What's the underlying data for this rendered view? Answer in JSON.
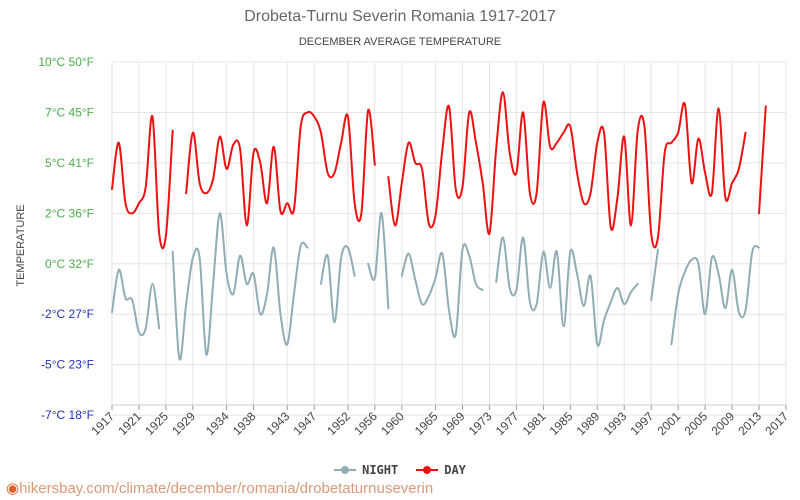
{
  "title": "Drobeta-Turnu Severin Romania 1917-2017",
  "subtitle": "DECEMBER AVERAGE TEMPERATURE",
  "source_url": "hikersbay.com/climate/december/romania/drobetaturnuseverin",
  "colors": {
    "day": "#ee1111",
    "night": "#90adb5",
    "grid": "#e5e5e5",
    "y_green": "#4cae4c",
    "y_blue": "#2233bb"
  },
  "chart_data": {
    "type": "line",
    "title": "Drobeta-Turnu Severin Romania 1917-2017",
    "subtitle": "DECEMBER AVERAGE TEMPERATURE",
    "ylabel": "TEMPERATURE",
    "xlabel": "",
    "ylim": [
      -7,
      10
    ],
    "y_ticks": [
      {
        "value": 10,
        "label": "10°C 50°F",
        "color": "green"
      },
      {
        "value": 7.5,
        "label": "7°C 45°F",
        "color": "green"
      },
      {
        "value": 5,
        "label": "5°C 41°F",
        "color": "green"
      },
      {
        "value": 2.5,
        "label": "2°C 36°F",
        "color": "green"
      },
      {
        "value": 0,
        "label": "0°C 32°F",
        "color": "green"
      },
      {
        "value": -2.5,
        "label": "-2°C 27°F",
        "color": "blue"
      },
      {
        "value": -5,
        "label": "-5°C 23°F",
        "color": "blue"
      },
      {
        "value": -7.5,
        "label": "-7°C 18°F",
        "color": "blue"
      }
    ],
    "x_ticks": [
      1917,
      1921,
      1925,
      1929,
      1934,
      1938,
      1943,
      1947,
      1952,
      1956,
      1960,
      1965,
      1969,
      1973,
      1977,
      1981,
      1985,
      1989,
      1993,
      1997,
      2001,
      2005,
      2009,
      2013,
      2017
    ],
    "xlim": [
      1917,
      2017
    ],
    "grid": true,
    "legend_position": "bottom",
    "series": [
      {
        "name": "NIGHT",
        "color": "#90adb5",
        "points": [
          [
            1917,
            -2.4
          ],
          [
            1918,
            -0.3
          ],
          [
            1919,
            -1.7
          ],
          [
            1920,
            -1.8
          ],
          [
            1921,
            -3.4
          ],
          [
            1922,
            -3.2
          ],
          [
            1923,
            -1.0
          ],
          [
            1924,
            -3.2
          ],
          null,
          [
            1926,
            0.6
          ],
          [
            1927,
            -4.7
          ],
          [
            1928,
            -2.0
          ],
          [
            1929,
            0.3
          ],
          [
            1930,
            0.3
          ],
          [
            1931,
            -4.5
          ],
          [
            1932,
            -1.0
          ],
          [
            1933,
            2.5
          ],
          [
            1934,
            -0.5
          ],
          [
            1935,
            -1.5
          ],
          [
            1936,
            0.4
          ],
          [
            1937,
            -1.0
          ],
          [
            1938,
            -0.5
          ],
          [
            1939,
            -2.5
          ],
          [
            1940,
            -1.5
          ],
          [
            1941,
            0.8
          ],
          [
            1942,
            -2.5
          ],
          [
            1943,
            -4.0
          ],
          [
            1944,
            -1.5
          ],
          [
            1945,
            0.9
          ],
          [
            1946,
            0.8
          ],
          null,
          [
            1948,
            -1.0
          ],
          [
            1949,
            0.4
          ],
          [
            1950,
            -2.9
          ],
          [
            1951,
            0.3
          ],
          [
            1952,
            0.8
          ],
          [
            1953,
            -0.6
          ],
          null,
          [
            1955,
            0.0
          ],
          [
            1956,
            -0.7
          ],
          [
            1957,
            2.5
          ],
          [
            1958,
            -2.2
          ],
          null,
          [
            1960,
            -0.6
          ],
          [
            1961,
            0.5
          ],
          [
            1962,
            -0.8
          ],
          [
            1963,
            -2.0
          ],
          [
            1964,
            -1.6
          ],
          [
            1965,
            -0.7
          ],
          [
            1966,
            0.5
          ],
          [
            1967,
            -2.3
          ],
          [
            1968,
            -3.5
          ],
          [
            1969,
            0.7
          ],
          [
            1970,
            0.4
          ],
          [
            1971,
            -1.0
          ],
          [
            1972,
            -1.3
          ],
          null,
          [
            1974,
            -0.9
          ],
          [
            1975,
            1.3
          ],
          [
            1976,
            -1.2
          ],
          [
            1977,
            -1.3
          ],
          [
            1978,
            1.3
          ],
          [
            1979,
            -1.9
          ],
          [
            1980,
            -2.0
          ],
          [
            1981,
            0.6
          ],
          [
            1982,
            -1.2
          ],
          [
            1983,
            0.6
          ],
          [
            1984,
            -3.1
          ],
          [
            1985,
            0.6
          ],
          [
            1986,
            -0.5
          ],
          [
            1987,
            -2.1
          ],
          [
            1988,
            -0.6
          ],
          [
            1989,
            -4.0
          ],
          [
            1990,
            -2.8
          ],
          [
            1991,
            -1.9
          ],
          [
            1992,
            -1.2
          ],
          [
            1993,
            -2.0
          ],
          [
            1994,
            -1.4
          ],
          [
            1995,
            -1.0
          ],
          null,
          [
            1997,
            -1.8
          ],
          [
            1998,
            0.7
          ],
          null,
          [
            2000,
            -4.0
          ],
          [
            2001,
            -1.5
          ],
          [
            2002,
            -0.4
          ],
          [
            2003,
            0.2
          ],
          [
            2004,
            0.0
          ],
          [
            2005,
            -2.5
          ],
          [
            2006,
            0.3
          ],
          [
            2007,
            -0.5
          ],
          [
            2008,
            -2.2
          ],
          [
            2009,
            -0.3
          ],
          [
            2010,
            -2.4
          ],
          [
            2011,
            -2.3
          ],
          [
            2012,
            0.6
          ],
          [
            2013,
            0.8
          ]
        ]
      },
      {
        "name": "DAY",
        "color": "#ee1111",
        "points": [
          [
            1917,
            3.7
          ],
          [
            1918,
            6.0
          ],
          [
            1919,
            3.0
          ],
          [
            1920,
            2.5
          ],
          [
            1921,
            3.0
          ],
          [
            1922,
            3.8
          ],
          [
            1923,
            7.3
          ],
          [
            1924,
            1.5
          ],
          [
            1925,
            1.4
          ],
          [
            1926,
            6.6
          ],
          null,
          [
            1928,
            3.5
          ],
          [
            1929,
            6.5
          ],
          [
            1930,
            4.0
          ],
          [
            1931,
            3.5
          ],
          [
            1932,
            4.2
          ],
          [
            1933,
            6.3
          ],
          [
            1934,
            4.7
          ],
          [
            1935,
            5.9
          ],
          [
            1936,
            5.7
          ],
          [
            1937,
            1.9
          ],
          [
            1938,
            5.5
          ],
          [
            1939,
            5.0
          ],
          [
            1940,
            3.0
          ],
          [
            1941,
            5.8
          ],
          [
            1942,
            2.6
          ],
          [
            1943,
            3.0
          ],
          [
            1944,
            2.7
          ],
          [
            1945,
            6.8
          ],
          [
            1946,
            7.5
          ],
          [
            1947,
            7.3
          ],
          [
            1948,
            6.5
          ],
          [
            1949,
            4.5
          ],
          [
            1950,
            4.5
          ],
          [
            1951,
            6.0
          ],
          [
            1952,
            7.3
          ],
          [
            1953,
            3.0
          ],
          [
            1954,
            2.5
          ],
          [
            1955,
            7.6
          ],
          [
            1956,
            4.9
          ],
          null,
          [
            1958,
            4.3
          ],
          [
            1959,
            1.9
          ],
          [
            1960,
            4.0
          ],
          [
            1961,
            6.0
          ],
          [
            1962,
            5.0
          ],
          [
            1963,
            4.7
          ],
          [
            1964,
            2.0
          ],
          [
            1965,
            2.4
          ],
          [
            1966,
            5.6
          ],
          [
            1967,
            7.8
          ],
          [
            1968,
            3.7
          ],
          [
            1969,
            3.8
          ],
          [
            1970,
            7.5
          ],
          [
            1971,
            6.0
          ],
          [
            1972,
            4.0
          ],
          [
            1973,
            1.5
          ],
          [
            1974,
            5.7
          ],
          [
            1975,
            8.5
          ],
          [
            1976,
            5.5
          ],
          [
            1977,
            4.5
          ],
          [
            1978,
            7.5
          ],
          [
            1979,
            3.5
          ],
          [
            1980,
            3.5
          ],
          [
            1981,
            8.0
          ],
          [
            1982,
            5.8
          ],
          [
            1983,
            6.0
          ],
          [
            1984,
            6.5
          ],
          [
            1985,
            6.8
          ],
          [
            1986,
            4.5
          ],
          [
            1987,
            3.0
          ],
          [
            1988,
            3.5
          ],
          [
            1989,
            6.0
          ],
          [
            1990,
            6.5
          ],
          [
            1991,
            1.8
          ],
          [
            1992,
            3.3
          ],
          [
            1993,
            6.3
          ],
          [
            1994,
            1.9
          ],
          [
            1995,
            6.6
          ],
          [
            1996,
            6.8
          ],
          [
            1997,
            1.5
          ],
          [
            1998,
            1.3
          ],
          [
            1999,
            5.5
          ],
          [
            2000,
            6.0
          ],
          [
            2001,
            6.5
          ],
          [
            2002,
            7.9
          ],
          [
            2003,
            4.0
          ],
          [
            2004,
            6.2
          ],
          [
            2005,
            4.5
          ],
          [
            2006,
            3.5
          ],
          [
            2007,
            7.7
          ],
          [
            2008,
            3.3
          ],
          [
            2009,
            4.0
          ],
          [
            2010,
            4.7
          ],
          [
            2011,
            6.5
          ],
          null,
          [
            2013,
            2.5
          ],
          [
            2014,
            7.8
          ]
        ]
      }
    ]
  },
  "legend": {
    "night_label": "NIGHT",
    "day_label": "DAY"
  }
}
